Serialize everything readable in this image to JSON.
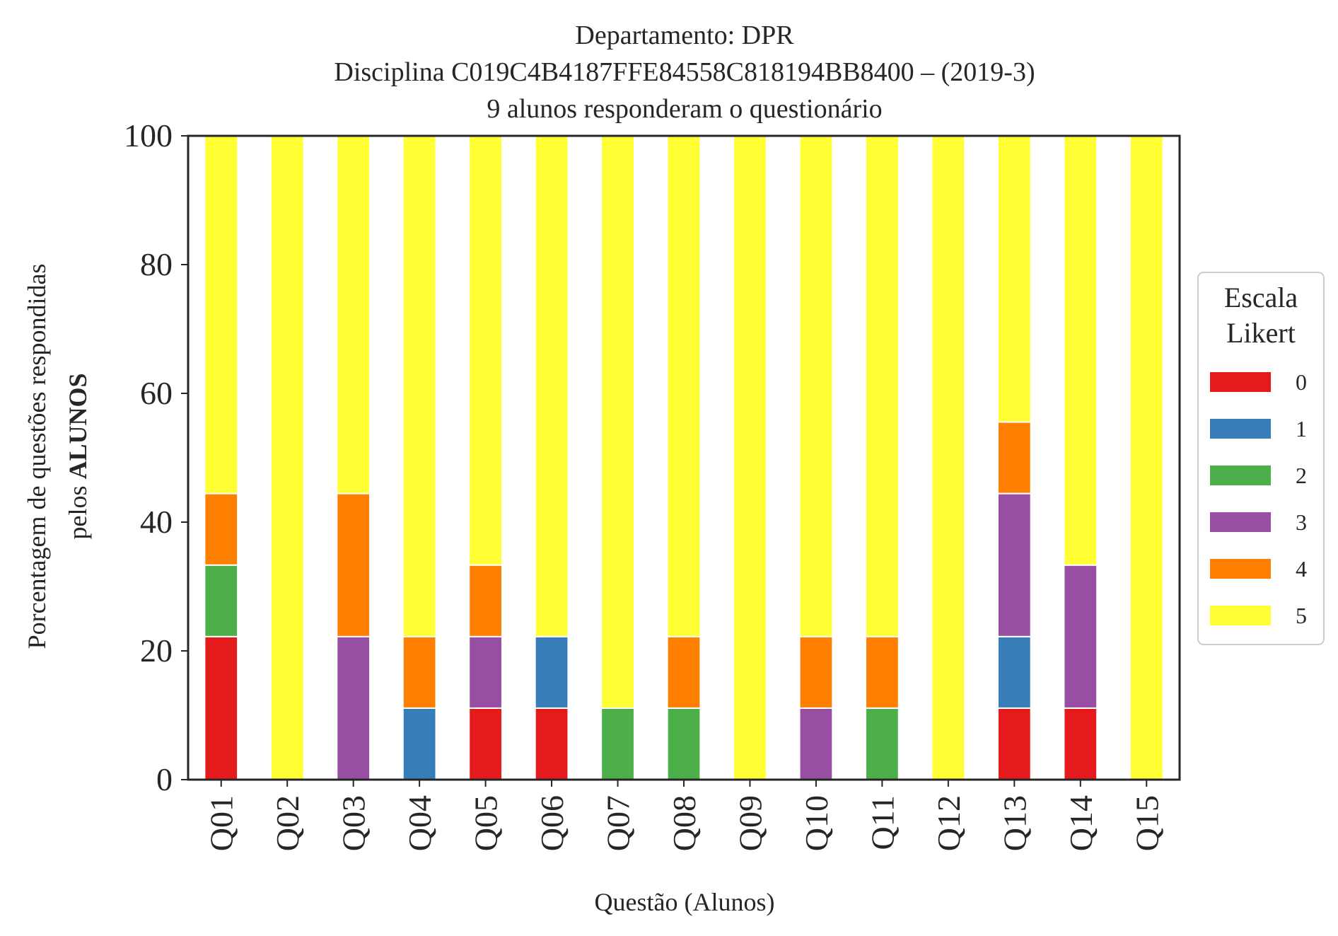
{
  "chart_data": {
    "type": "bar",
    "stacked": true,
    "title_lines": [
      "Departamento: DPR",
      "Disciplina C019C4B4187FFE84558C818194BB8400 – (2019-3)",
      "9 alunos responderam o questionário"
    ],
    "xlabel": "Questão (Alunos)",
    "ylabel_line1": "Porcentagem de questões respondidas",
    "ylabel_line2_prefix": "pelos ",
    "ylabel_line2_bold": "ALUNOS",
    "ylim": [
      0,
      100
    ],
    "yticks": [
      "0",
      "20",
      "40",
      "60",
      "80",
      "100"
    ],
    "grid": false,
    "legend_title_line1": "Escala",
    "legend_title_line2": "Likert",
    "legend_position": "right",
    "categories": [
      "Q01",
      "Q02",
      "Q03",
      "Q04",
      "Q05",
      "Q06",
      "Q07",
      "Q08",
      "Q09",
      "Q10",
      "Q11",
      "Q12",
      "Q13",
      "Q14",
      "Q15"
    ],
    "series": [
      {
        "name": "0",
        "color": "#e41a1c",
        "values": [
          22.22,
          0,
          0,
          0,
          11.11,
          11.11,
          0,
          0,
          0,
          0,
          0,
          0,
          11.11,
          11.11,
          0
        ]
      },
      {
        "name": "1",
        "color": "#377eb8",
        "values": [
          0,
          0,
          0,
          11.11,
          0,
          11.11,
          0,
          0,
          0,
          0,
          0,
          0,
          11.11,
          0,
          0
        ]
      },
      {
        "name": "2",
        "color": "#4daf4a",
        "values": [
          11.11,
          0,
          0,
          0,
          0,
          0,
          11.11,
          11.11,
          0,
          0,
          11.11,
          0,
          0,
          0,
          0
        ]
      },
      {
        "name": "3",
        "color": "#984ea3",
        "values": [
          0,
          0,
          22.22,
          0,
          11.11,
          0,
          0,
          0,
          0,
          11.11,
          0,
          0,
          22.22,
          22.22,
          0
        ]
      },
      {
        "name": "4",
        "color": "#ff7f00",
        "values": [
          11.11,
          0,
          22.22,
          11.11,
          11.11,
          0,
          0,
          11.11,
          0,
          11.11,
          11.11,
          0,
          11.11,
          0,
          0
        ]
      },
      {
        "name": "5",
        "color": "#ffff33",
        "values": [
          55.56,
          100,
          55.56,
          77.78,
          66.67,
          77.78,
          88.89,
          77.78,
          100,
          77.78,
          77.78,
          100,
          44.44,
          66.67,
          100
        ]
      }
    ]
  }
}
